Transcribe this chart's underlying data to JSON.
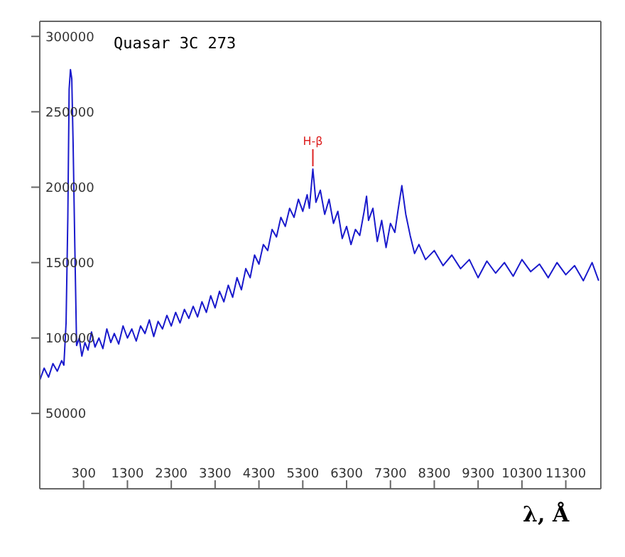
{
  "chart_data": {
    "type": "line",
    "title": "Quasar 3C 273",
    "xlabel": "λ, Å",
    "x": [
      -700,
      -600,
      -500,
      -400,
      -300,
      -200,
      -150,
      -100,
      -60,
      -30,
      0,
      30,
      60,
      100,
      140,
      200,
      260,
      330,
      400,
      480,
      560,
      650,
      740,
      830,
      920,
      1000,
      1100,
      1200,
      1300,
      1400,
      1500,
      1600,
      1700,
      1800,
      1900,
      2000,
      2100,
      2200,
      2300,
      2400,
      2500,
      2600,
      2700,
      2800,
      2900,
      3000,
      3100,
      3200,
      3300,
      3400,
      3500,
      3600,
      3700,
      3800,
      3900,
      4000,
      4100,
      4200,
      4300,
      4400,
      4500,
      4600,
      4700,
      4800,
      4900,
      5000,
      5100,
      5200,
      5300,
      5400,
      5450,
      5530,
      5600,
      5700,
      5800,
      5900,
      6000,
      6100,
      6200,
      6300,
      6400,
      6500,
      6600,
      6700,
      6755,
      6800,
      6900,
      7000,
      7100,
      7200,
      7300,
      7400,
      7480,
      7560,
      7650,
      7750,
      7850,
      7950,
      8100,
      8300,
      8500,
      8700,
      8900,
      9100,
      9300,
      9500,
      9700,
      9900,
      10100,
      10300,
      10500,
      10700,
      10900,
      11100,
      11300,
      11500,
      11700,
      11900,
      12050
    ],
    "series": [
      {
        "color": "#1a1acc",
        "values": [
          72000,
          80000,
          74000,
          83000,
          78000,
          85000,
          82000,
          110000,
          180000,
          265000,
          278000,
          272000,
          230000,
          160000,
          95000,
          100000,
          88000,
          97000,
          92000,
          104000,
          94000,
          100000,
          93000,
          106000,
          97000,
          103000,
          96000,
          108000,
          100000,
          106000,
          98000,
          108000,
          103000,
          112000,
          101000,
          111000,
          106000,
          115000,
          108000,
          117000,
          110000,
          119000,
          113000,
          121000,
          114000,
          124000,
          117000,
          128000,
          120000,
          131000,
          124000,
          135000,
          127000,
          140000,
          132000,
          146000,
          140000,
          155000,
          149000,
          162000,
          158000,
          172000,
          167000,
          180000,
          174000,
          186000,
          180000,
          192000,
          184000,
          195000,
          186000,
          212000,
          190000,
          198000,
          182000,
          192000,
          176000,
          184000,
          166000,
          174000,
          162000,
          172000,
          168000,
          184000,
          194000,
          178000,
          186000,
          164000,
          178000,
          160000,
          176000,
          170000,
          186000,
          201000,
          182000,
          168000,
          156000,
          162000,
          152000,
          158000,
          148000,
          155000,
          146000,
          152000,
          140000,
          151000,
          143000,
          150000,
          141000,
          152000,
          144000,
          149000,
          140000,
          150000,
          142000,
          148000,
          138000,
          150000,
          138000
        ]
      }
    ],
    "annotations": [
      {
        "text": "H-β",
        "x": 5530,
        "y": 212000
      }
    ],
    "xlim": [
      -700,
      12100
    ],
    "ylim": [
      0,
      310000
    ],
    "xticks": [
      300,
      1300,
      2300,
      3300,
      4300,
      5300,
      6300,
      7300,
      8300,
      9300,
      10300,
      11300
    ],
    "yticks": [
      50000,
      100000,
      150000,
      200000,
      250000,
      300000
    ],
    "marker": "none",
    "line_style": "solid"
  }
}
